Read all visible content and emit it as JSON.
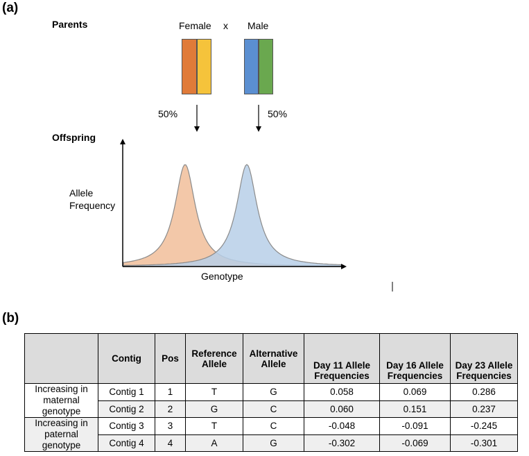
{
  "panel_a": {
    "label": "(a)",
    "parents_label": "Parents",
    "female_label": "Female",
    "cross_symbol": "x",
    "male_label": "Male",
    "female_percent": "50%",
    "male_percent": "50%",
    "offspring_label": "Offspring",
    "y_axis_label_line1": "Allele",
    "y_axis_label_line2": "Frequency",
    "x_axis_label": "Genotype",
    "colors": {
      "female_chrom_1": "#e07b39",
      "female_chrom_2": "#f5c33b",
      "male_chrom_1": "#5b8fd1",
      "male_chrom_2": "#6aa84f",
      "female_curve": "#f2c2a0",
      "male_curve": "#b7cfe8"
    }
  },
  "panel_b": {
    "label": "(b)",
    "headers": [
      "",
      "Contig",
      "Pos",
      "Reference Allele",
      "Alternative Allele",
      "Day 11 Allele Frequencies",
      "Day 16 Allele Frequencies",
      "Day 23 Allele Frequencies"
    ],
    "groups": [
      {
        "label": "Increasing in maternal genotype",
        "rows": [
          [
            "Contig 1",
            "1",
            "T",
            "G",
            "0.058",
            "0.069",
            "0.286"
          ],
          [
            "Contig 2",
            "2",
            "G",
            "C",
            "0.060",
            "0.151",
            "0.237"
          ]
        ]
      },
      {
        "label": "Increasing in paternal genotype",
        "rows": [
          [
            "Contig 3",
            "3",
            "T",
            "C",
            "-0.048",
            "-0.091",
            "-0.245"
          ],
          [
            "Contig 4",
            "4",
            "A",
            "G",
            "-0.302",
            "-0.069",
            "-0.301"
          ]
        ]
      }
    ]
  }
}
